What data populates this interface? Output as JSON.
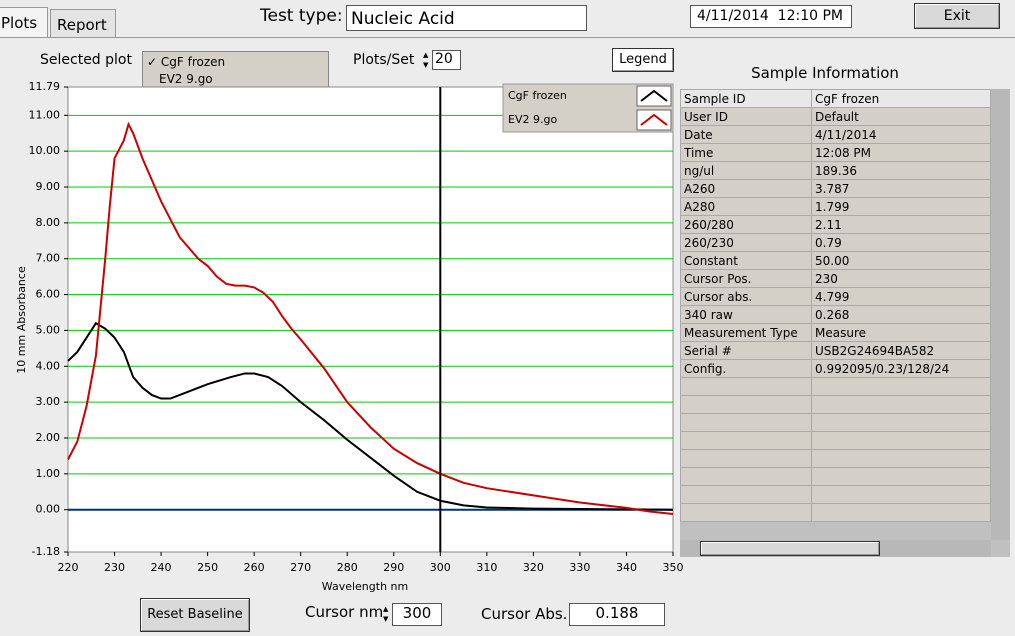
{
  "tabs": [
    "Plots",
    "Report"
  ],
  "test_type": {
    "label": "Test type:",
    "value": "Nucleic Acid"
  },
  "datetime": "4/11/2014  12:10 PM",
  "exit_button": "Exit",
  "selected_plot_label": "Selected plot",
  "plots_per_set": {
    "label": "Plots/Set",
    "value": "20"
  },
  "legend_button": "Legend",
  "sample_info": {
    "title": "Sample Information",
    "rows": [
      [
        "Sample ID",
        "CgF frozen"
      ],
      [
        "User ID",
        "Default"
      ],
      [
        "Date",
        "4/11/2014"
      ],
      [
        "Time",
        "12:08 PM"
      ],
      [
        "ng/ul",
        "189.36"
      ],
      [
        "A260",
        "3.787"
      ],
      [
        "A280",
        "1.799"
      ],
      [
        "260/280",
        "2.11"
      ],
      [
        "260/230",
        "0.79"
      ],
      [
        "Constant",
        "50.00"
      ],
      [
        "Cursor Pos.",
        "230"
      ],
      [
        "Cursor abs.",
        "4.799"
      ],
      [
        "340 raw",
        "0.268"
      ],
      [
        "Measurement Type",
        "Measure"
      ],
      [
        "Serial #",
        "USB2G24694BA582"
      ],
      [
        "Config.",
        "0.992095/0.23/128/24"
      ]
    ]
  },
  "controls": {
    "reset_baseline": "Reset Baseline",
    "cursor_nm_label": "Cursor nm",
    "cursor_abs_label": "Cursor Abs.",
    "cursor_abs": "0.188"
  },
  "chart_data": {
    "type": "line",
    "x_label": "Wavelength nm",
    "y_label": "10 mm Absorbance",
    "xlim": [
      220,
      350
    ],
    "ylim": [
      -1.18,
      11.79
    ],
    "xticks": [
      220,
      230,
      240,
      250,
      260,
      270,
      280,
      290,
      300,
      310,
      320,
      330,
      340,
      350
    ],
    "yticks": [
      -1.18,
      {
        "value": 0,
        "label": "0.00"
      },
      {
        "value": 1,
        "label": "1.00"
      },
      {
        "value": 2,
        "label": "2.00"
      },
      {
        "value": 3,
        "label": "3.00"
      },
      {
        "value": 4,
        "label": "4.00"
      },
      {
        "value": 5,
        "label": "5.00"
      },
      {
        "value": 6,
        "label": "6.00"
      },
      {
        "value": 7,
        "label": "7.00"
      },
      {
        "value": 8,
        "label": "8.00"
      },
      {
        "value": 9,
        "label": "9.00"
      },
      {
        "value": 10,
        "label": "10.00"
      },
      {
        "value": 11,
        "label": "11.00"
      },
      11.79
    ],
    "grid": true,
    "grid_color": "#00cc00",
    "baseline_color": "#00307a",
    "cursor_x": 300,
    "series": [
      {
        "name": "CgF frozen",
        "color": "#000000",
        "x": [
          220,
          222,
          224,
          226,
          228,
          230,
          232,
          234,
          236,
          238,
          240,
          242,
          245,
          250,
          255,
          258,
          260,
          263,
          266,
          270,
          275,
          280,
          285,
          290,
          295,
          300,
          305,
          310,
          320,
          330,
          340,
          350
        ],
        "values": [
          4.15,
          4.4,
          4.8,
          5.2,
          5.05,
          4.8,
          4.4,
          3.7,
          3.4,
          3.2,
          3.1,
          3.1,
          3.25,
          3.5,
          3.7,
          3.8,
          3.8,
          3.7,
          3.45,
          3.0,
          2.5,
          1.95,
          1.45,
          0.95,
          0.5,
          0.25,
          0.12,
          0.06,
          0.03,
          0.02,
          0.01,
          0.0
        ]
      },
      {
        "name": "EV2 9.go",
        "color": "#cc0000",
        "x": [
          220,
          222,
          224,
          226,
          228,
          229,
          230,
          232,
          233,
          234,
          236,
          238,
          240,
          242,
          244,
          246,
          248,
          250,
          252,
          254,
          256,
          258,
          260,
          262,
          264,
          266,
          268,
          270,
          275,
          280,
          285,
          290,
          295,
          300,
          305,
          310,
          320,
          330,
          340,
          345,
          350
        ],
        "values": [
          1.4,
          1.9,
          2.9,
          4.3,
          7.0,
          8.5,
          9.8,
          10.3,
          10.75,
          10.5,
          9.8,
          9.2,
          8.6,
          8.1,
          7.6,
          7.3,
          7.0,
          6.8,
          6.5,
          6.3,
          6.25,
          6.25,
          6.2,
          6.05,
          5.8,
          5.4,
          5.05,
          4.75,
          3.95,
          3.0,
          2.3,
          1.7,
          1.3,
          1.0,
          0.75,
          0.6,
          0.4,
          0.2,
          0.05,
          -0.05,
          -0.12
        ]
      }
    ]
  }
}
